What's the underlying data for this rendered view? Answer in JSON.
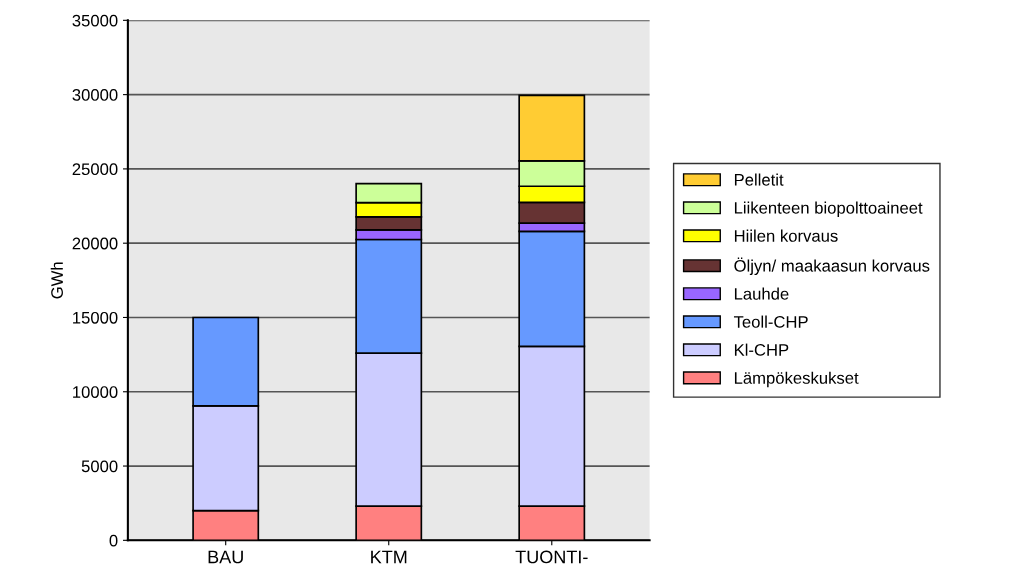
{
  "chart_data": {
    "type": "bar",
    "stacked": true,
    "ylabel": "GWh",
    "categories": [
      "BAU",
      "KTM",
      "TUONTI-"
    ],
    "series": [
      {
        "name": "Lämpökeskukset",
        "color": "#ff8080",
        "values": [
          2000,
          2300,
          2300
        ]
      },
      {
        "name": "Kl-CHP",
        "color": "#ccccff",
        "values": [
          7050,
          10300,
          10760
        ]
      },
      {
        "name": "Teoll-CHP",
        "color": "#6699ff",
        "values": [
          5950,
          7650,
          7730
        ]
      },
      {
        "name": "Lauhde",
        "color": "#9966ff",
        "values": [
          null,
          650,
          560
        ]
      },
      {
        "name": "Öljyn/ maakaasun korvaus",
        "color": "#663333",
        "values": [
          null,
          870,
          1400
        ]
      },
      {
        "name": "Hiilen korvaus",
        "color": "#ffff00",
        "values": [
          null,
          960,
          1080
        ]
      },
      {
        "name": "Liikenteen biopolttoaineet",
        "color": "#ccff99",
        "values": [
          null,
          1280,
          1710
        ]
      },
      {
        "name": "Pelletit",
        "color": "#ffcc33",
        "values": [
          null,
          null,
          4410
        ]
      }
    ],
    "ylim": [
      0,
      35000
    ],
    "yticks": [
      0,
      5000,
      10000,
      15000,
      20000,
      25000,
      30000,
      35000
    ],
    "grid": "y",
    "legend": "right"
  }
}
